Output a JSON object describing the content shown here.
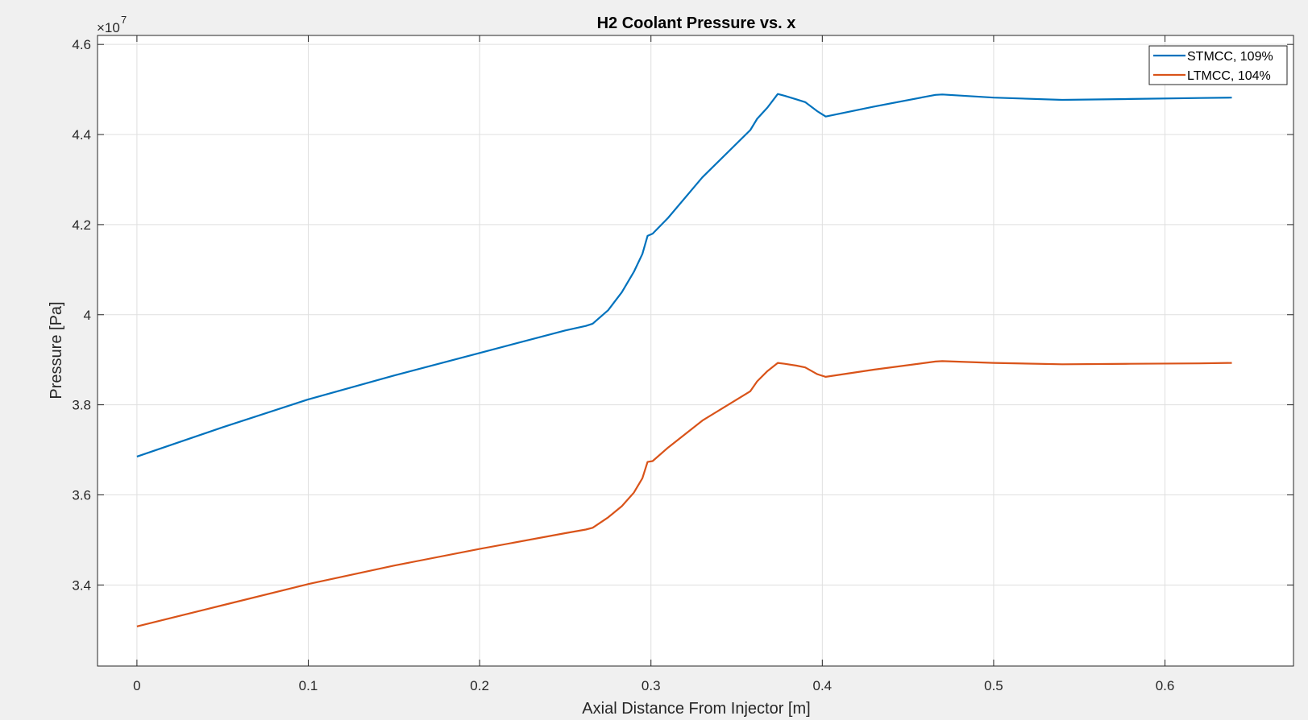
{
  "chart_data": {
    "type": "line",
    "title": "H2 Coolant Pressure vs. x",
    "xlabel": "Axial Distance From Injector [m]",
    "ylabel": "Pressure [Pa]",
    "y_exponent_label": "×10",
    "y_exponent_power": "7",
    "xlim": [
      -0.023,
      0.675
    ],
    "ylim": [
      3.22,
      4.62
    ],
    "x_ticks": [
      0,
      0.1,
      0.2,
      0.3,
      0.4,
      0.5,
      0.6
    ],
    "x_tick_labels": [
      "0",
      "0.1",
      "0.2",
      "0.3",
      "0.4",
      "0.5",
      "0.6"
    ],
    "y_ticks": [
      3.4,
      3.6,
      3.8,
      4.0,
      4.2,
      4.4,
      4.6
    ],
    "y_tick_labels": [
      "3.4",
      "3.6",
      "3.8",
      "4",
      "4.2",
      "4.4",
      "4.6"
    ],
    "grid": true,
    "legend_position": "top-right",
    "series": [
      {
        "name": "STMCC, 109%",
        "color": "#0072BD",
        "x": [
          0,
          0.05,
          0.1,
          0.15,
          0.2,
          0.25,
          0.262,
          0.266,
          0.275,
          0.283,
          0.29,
          0.295,
          0.298,
          0.301,
          0.31,
          0.33,
          0.358,
          0.362,
          0.368,
          0.374,
          0.378,
          0.385,
          0.39,
          0.397,
          0.402,
          0.43,
          0.466,
          0.47,
          0.5,
          0.54,
          0.58,
          0.62,
          0.639
        ],
        "y": [
          3.685,
          3.75,
          3.812,
          3.865,
          3.915,
          3.965,
          3.975,
          3.98,
          4.01,
          4.05,
          4.095,
          4.135,
          4.175,
          4.18,
          4.215,
          4.305,
          4.41,
          4.435,
          4.46,
          4.49,
          4.486,
          4.478,
          4.472,
          4.452,
          4.44,
          4.462,
          4.488,
          4.489,
          4.482,
          4.477,
          4.479,
          4.481,
          4.482
        ],
        "legend_y": 0
      },
      {
        "name": "LTMCC, 104%",
        "color": "#D95319",
        "x": [
          0,
          0.05,
          0.1,
          0.15,
          0.2,
          0.25,
          0.262,
          0.266,
          0.275,
          0.283,
          0.29,
          0.295,
          0.298,
          0.301,
          0.31,
          0.33,
          0.358,
          0.362,
          0.368,
          0.374,
          0.378,
          0.385,
          0.39,
          0.397,
          0.402,
          0.43,
          0.466,
          0.47,
          0.5,
          0.54,
          0.58,
          0.62,
          0.639
        ],
        "y": [
          3.308,
          3.355,
          3.402,
          3.443,
          3.48,
          3.515,
          3.523,
          3.527,
          3.55,
          3.575,
          3.605,
          3.637,
          3.673,
          3.675,
          3.705,
          3.765,
          3.83,
          3.852,
          3.875,
          3.893,
          3.891,
          3.887,
          3.883,
          3.868,
          3.862,
          3.878,
          3.896,
          3.897,
          3.893,
          3.89,
          3.891,
          3.892,
          3.893
        ],
        "legend_y": 1
      }
    ]
  }
}
